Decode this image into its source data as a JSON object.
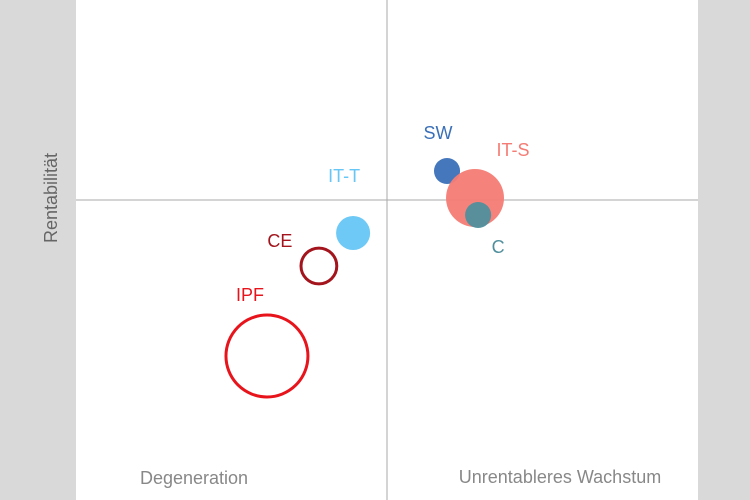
{
  "chart_data": {
    "type": "bubble",
    "y_label": "Rentabilität",
    "annotations": [
      "Degeneration",
      "Unrentableres Wachstum"
    ],
    "xlim": [
      -100,
      100
    ],
    "ylim": [
      -150,
      100
    ],
    "series": [
      {
        "name": "SW",
        "color": "#3a70b8",
        "filled": true,
        "x": 19.3,
        "y": 14.5,
        "size": 17
      },
      {
        "name": "IT-S",
        "color": "#f47c74",
        "filled": true,
        "x": 28.3,
        "y": 1,
        "size": 84
      },
      {
        "name": "C",
        "color": "#4f8f9d",
        "filled": true,
        "x": 29.3,
        "y": -7.5,
        "size": 17
      },
      {
        "name": "IT-T",
        "color": "#66c6f5",
        "filled": true,
        "x": -10.9,
        "y": -16.5,
        "size": 29
      },
      {
        "name": "CE",
        "color": "#a3141c",
        "filled": false,
        "x": -21.9,
        "y": -33,
        "size": 32
      },
      {
        "name": "IPF",
        "color": "#e8141c",
        "filled": false,
        "x": -38.6,
        "y": -78,
        "size": 168
      }
    ]
  }
}
